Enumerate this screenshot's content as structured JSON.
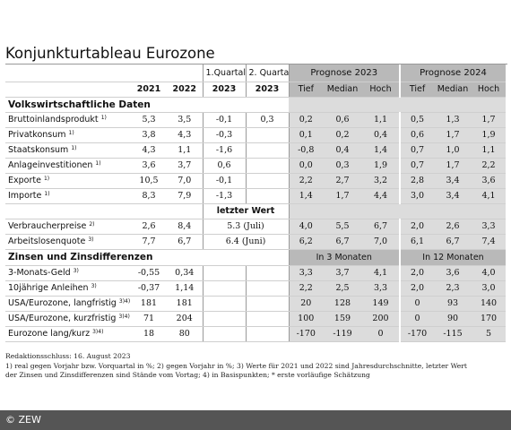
{
  "title": "Konjunkturtableau Eurozone",
  "header": {
    "q1": "1.Quartal",
    "q2": "2. Quartal",
    "prognose2023": "Prognose 2023",
    "prognose2024": "Prognose 2024",
    "y2021": "2021",
    "y2022": "2022",
    "y2023a": "2023",
    "y2023b": "2023",
    "tief": "Tief",
    "median": "Median",
    "hoch": "Hoch"
  },
  "sections": {
    "volkswirtschaft": "Volkswirtschaftliche Daten",
    "zinsen": "Zinsen und Zinsdifferenzen",
    "letzter_wert": "letzter Wert",
    "in3": "In 3 Monaten",
    "in12": "In 12 Monaten"
  },
  "rows_vw": [
    {
      "label": "Bruttoinlandsprodukt",
      "sup": "1)",
      "v2021": "5,3",
      "v2022": "3,5",
      "q1": "-0,1",
      "q2": "0,3",
      "p23": [
        "0,2",
        "0,6",
        "1,1"
      ],
      "p24": [
        "0,5",
        "1,3",
        "1,7"
      ]
    },
    {
      "label": "Privatkonsum",
      "sup": "1)",
      "v2021": "3,8",
      "v2022": "4,3",
      "q1": "-0,3",
      "q2": "",
      "p23": [
        "0,1",
        "0,2",
        "0,4"
      ],
      "p24": [
        "0,6",
        "1,7",
        "1,9"
      ]
    },
    {
      "label": "Staatskonsum",
      "sup": "1)",
      "v2021": "4,3",
      "v2022": "1,1",
      "q1": "-1,6",
      "q2": "",
      "p23": [
        "-0,8",
        "0,4",
        "1,4"
      ],
      "p24": [
        "0,7",
        "1,0",
        "1,1"
      ]
    },
    {
      "label": "Anlageinvestitionen",
      "sup": "1)",
      "v2021": "3,6",
      "v2022": "3,7",
      "q1": "0,6",
      "q2": "",
      "p23": [
        "0,0",
        "0,3",
        "1,9"
      ],
      "p24": [
        "0,7",
        "1,7",
        "2,2"
      ]
    },
    {
      "label": "Exporte",
      "sup": "1)",
      "v2021": "10,5",
      "v2022": "7,0",
      "q1": "-0,1",
      "q2": "",
      "p23": [
        "2,2",
        "2,7",
        "3,2"
      ],
      "p24": [
        "2,8",
        "3,4",
        "3,6"
      ]
    },
    {
      "label": "Importe",
      "sup": "1)",
      "v2021": "8,3",
      "v2022": "7,9",
      "q1": "-1,3",
      "q2": "",
      "p23": [
        "1,4",
        "1,7",
        "4,4"
      ],
      "p24": [
        "3,0",
        "3,4",
        "4,1"
      ]
    }
  ],
  "rows_lw": [
    {
      "label": "Verbraucherpreise",
      "sup": "2)",
      "v2021": "2,6",
      "v2022": "8,4",
      "last": "5.3 (Juli)",
      "p23": [
        "4,0",
        "5,5",
        "6,7"
      ],
      "p24": [
        "2,0",
        "2,6",
        "3,3"
      ]
    },
    {
      "label": "Arbeitslosenquote",
      "sup": "3)",
      "v2021": "7,7",
      "v2022": "6,7",
      "last": "6.4 (Juni)",
      "p23": [
        "6,2",
        "6,7",
        "7,0"
      ],
      "p24": [
        "6,1",
        "6,7",
        "7,4"
      ]
    }
  ],
  "rows_zins": [
    {
      "label": "3-Monats-Geld",
      "sup": "3)",
      "v2021": "-0,55",
      "v2022": "0,34",
      "p23": [
        "3,3",
        "3,7",
        "4,1"
      ],
      "p24": [
        "2,0",
        "3,6",
        "4,0"
      ]
    },
    {
      "label": "10jährige Anleihen",
      "sup": "3)",
      "v2021": "-0,37",
      "v2022": "1,14",
      "p23": [
        "2,2",
        "2,5",
        "3,3"
      ],
      "p24": [
        "2,0",
        "2,3",
        "3,0"
      ]
    },
    {
      "label": "USA/Eurozone, langfristig",
      "sup": "3)4)",
      "v2021": "181",
      "v2022": "181",
      "p23": [
        "20",
        "128",
        "149"
      ],
      "p24": [
        "0",
        "93",
        "140"
      ]
    },
    {
      "label": "USA/Eurozone, kurzfristig",
      "sup": "3)4)",
      "v2021": "71",
      "v2022": "204",
      "p23": [
        "100",
        "159",
        "200"
      ],
      "p24": [
        "0",
        "90",
        "170"
      ]
    },
    {
      "label": "Eurozone lang/kurz",
      "sup": "3)4)",
      "v2021": "18",
      "v2022": "80",
      "p23": [
        "-170",
        "-119",
        "0"
      ],
      "p24": [
        "-170",
        "-115",
        "5"
      ]
    }
  ],
  "notes": [
    "Redaktionsschluss: 16. August 2023",
    "1) real gegen Vorjahr bzw. Vorquartal in %; 2) gegen Vorjahr in %; 3) Werte für 2021 und 2022 sind Jahresdurchschnitte, letzter Wert",
    "der Zinsen und Zinsdifferenzen sind Stände vom Vortag; 4) in Basispunkten; * erste vorläufige Schätzung"
  ],
  "copyright": "© ZEW"
}
